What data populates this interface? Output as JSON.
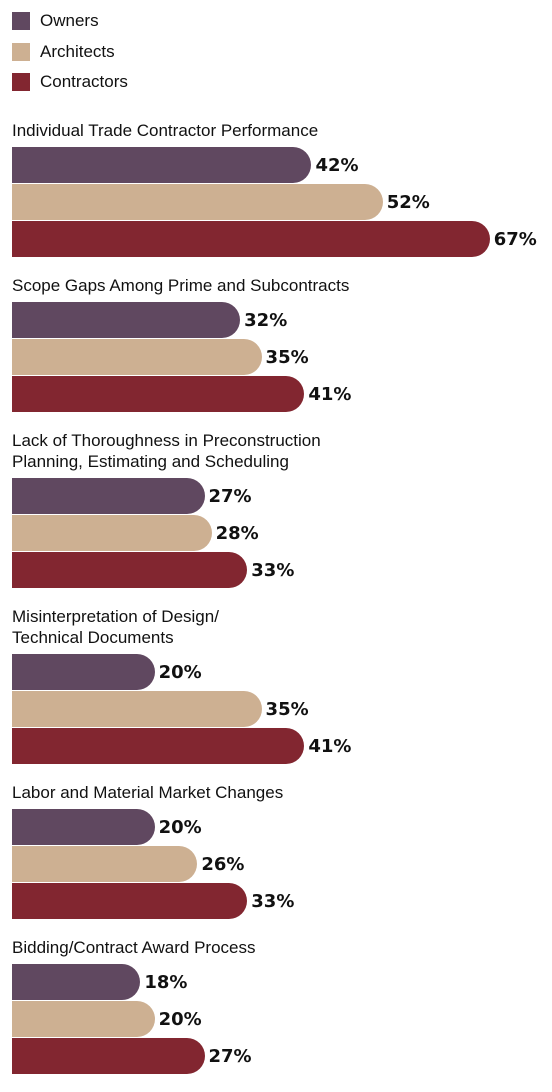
{
  "chart_data": {
    "type": "bar",
    "categories": [
      "Individual Trade Contractor Performance",
      "Scope Gaps Among Prime and Subcontracts",
      "Lack of Thoroughness in Preconstruction\nPlanning, Estimating and Scheduling",
      "Misinterpretation of Design/\nTechnical Documents",
      "Labor and Material Market Changes",
      "Bidding/Contract Award Process"
    ],
    "series": [
      {
        "name": "Owners",
        "color": "#604860",
        "values": [
          42,
          32,
          27,
          20,
          20,
          18
        ],
        "value_labels": [
          "42%",
          "32%",
          "27%",
          "20%",
          "20%",
          "18%"
        ]
      },
      {
        "name": "Architects",
        "color": "#cdb092",
        "values": [
          52,
          35,
          28,
          35,
          26,
          20
        ],
        "value_labels": [
          "52%",
          "35%",
          "28%",
          "35%",
          "26%",
          "20%"
        ]
      },
      {
        "name": "Contractors",
        "color": "#822630",
        "values": [
          67,
          41,
          33,
          41,
          33,
          27
        ],
        "value_labels": [
          "67%",
          "41%",
          "33%",
          "41%",
          "33%",
          "27%"
        ]
      }
    ]
  }
}
